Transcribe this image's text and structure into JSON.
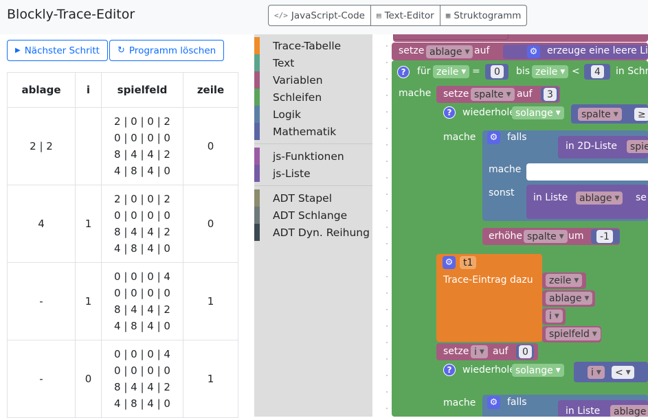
{
  "app": {
    "title": "Blockly-Trace-Editor"
  },
  "header": {
    "buttons": [
      {
        "label": "JavaScript-Code",
        "icon": "code-icon"
      },
      {
        "label": "Text-Editor",
        "icon": "document-icon"
      },
      {
        "label": "Struktogramm",
        "icon": "structogram-icon"
      }
    ]
  },
  "controls": {
    "next_step": "Nächster Schritt",
    "clear_program": "Programm löschen"
  },
  "trace_table": {
    "headers": [
      "ablage",
      "i",
      "spielfeld",
      "zeile"
    ],
    "rows": [
      {
        "ablage": "2 | 2",
        "i": "",
        "spielfeld": [
          "2 | 0 | 0 | 2",
          "0 | 0 | 0 | 0",
          "8 | 4 | 4 | 2",
          "4 | 8 | 4 | 0"
        ],
        "zeile": "0"
      },
      {
        "ablage": "4",
        "i": "1",
        "spielfeld": [
          "2 | 0 | 0 | 2",
          "0 | 0 | 0 | 0",
          "8 | 4 | 4 | 2",
          "4 | 8 | 4 | 0"
        ],
        "zeile": "0"
      },
      {
        "ablage": "-",
        "i": "1",
        "spielfeld": [
          "0 | 0 | 0 | 4",
          "0 | 0 | 0 | 0",
          "8 | 4 | 4 | 2",
          "4 | 8 | 4 | 0"
        ],
        "zeile": "1"
      },
      {
        "ablage": "-",
        "i": "0",
        "spielfeld": [
          "0 | 0 | 0 | 4",
          "0 | 0 | 0 | 0",
          "8 | 4 | 4 | 2",
          "4 | 8 | 4 | 0"
        ],
        "zeile": "1"
      }
    ]
  },
  "toolbox": {
    "categories": [
      {
        "label": "Trace-Tabelle",
        "color": "#f08c28"
      },
      {
        "label": "Text",
        "color": "#5ba58c"
      },
      {
        "label": "Variablen",
        "color": "#a55b80"
      },
      {
        "label": "Schleifen",
        "color": "#5ba55b"
      },
      {
        "label": "Logik",
        "color": "#5b80a5"
      },
      {
        "label": "Mathematik",
        "color": "#5b67a5"
      },
      {
        "label": "js-Funktionen",
        "color": "#9a5ba5"
      },
      {
        "label": "js-Liste",
        "color": "#745ba5"
      },
      {
        "label": "ADT Stapel",
        "color": "#8c8c6e"
      },
      {
        "label": "ADT Schlange",
        "color": "#6e7a7a"
      },
      {
        "label": "ADT Dyn. Reihung",
        "color": "#3a4a52"
      }
    ]
  },
  "workspace": {
    "setze": "setze",
    "auf": "auf",
    "var_ablage": "ablage",
    "erzeuge_liste": "erzeuge eine leere Liste",
    "fuer": "für",
    "var_zeile": "zeile",
    "eq": "=",
    "num_0": "0",
    "bis": "bis",
    "lt": "<",
    "num_4": "4",
    "in_schr": "in Schr",
    "mache": "mache",
    "var_spalte": "spalte",
    "num_3": "3",
    "wiederhole": "wiederhole",
    "solange": "solange",
    "ge": "≥",
    "falls": "falls",
    "in_2d_liste": "in 2D-Liste",
    "spie": "spie",
    "sonst": "sonst",
    "in_liste": "in Liste",
    "se": "se",
    "erhoehe": "erhöhe",
    "um": "um",
    "num_m1": "-1",
    "t1": "t1",
    "trace_eintrag": "Trace-Eintrag dazu",
    "var_i": "i",
    "var_spielfeld": "spielfeld"
  }
}
